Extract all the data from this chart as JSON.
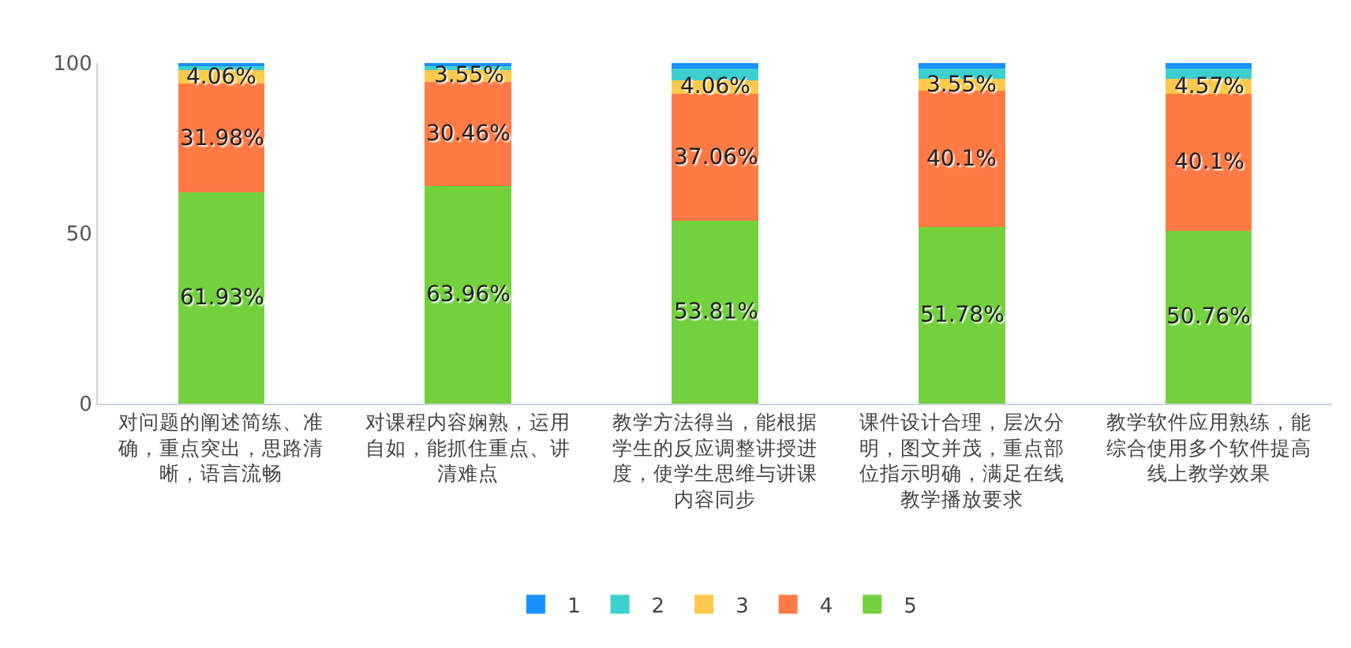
{
  "chart_data": {
    "type": "bar",
    "stacked": true,
    "categories": [
      "对问题的阐述简练、准确，重点突出，思路清晰，语言流畅",
      "对课程内容娴熟，运用自如，能抓住重点、讲清难点",
      "教学方法得当，能根据学生的反应调整讲授进度，使学生思维与讲课内容同步",
      "课件设计合理，层次分明，图文并茂，重点部位指示明确，满足在线教学播放要求",
      "教学软件应用熟练，能综合使用多个软件提高线上教学效果"
    ],
    "series": [
      {
        "name": "5",
        "color": "#73d13d",
        "values": [
          61.93,
          63.96,
          53.81,
          51.78,
          50.76
        ],
        "value_labels": [
          "61.93%",
          "63.96%",
          "53.81%",
          "51.78%",
          "50.76%"
        ]
      },
      {
        "name": "4",
        "color": "#ff7a45",
        "values": [
          31.98,
          30.46,
          37.06,
          40.1,
          40.1
        ],
        "value_labels": [
          "31.98%",
          "30.46%",
          "37.06%",
          "40.1%",
          "40.1%"
        ]
      },
      {
        "name": "3",
        "color": "#fcc94a",
        "values": [
          4.06,
          3.55,
          4.06,
          3.55,
          4.57
        ],
        "value_labels": [
          "4.06%",
          "3.55%",
          "4.06%",
          "3.55%",
          "4.57%"
        ]
      },
      {
        "name": "2",
        "color": "#3ccfcf",
        "values": [
          1,
          1,
          3.5,
          3,
          3
        ]
      },
      {
        "name": "1",
        "color": "#1890ff",
        "values": [
          1,
          1,
          1.5,
          1.5,
          1.5
        ]
      }
    ],
    "ylim": [
      0,
      100
    ],
    "yticks": [
      0,
      50,
      100
    ],
    "grid": false,
    "legend": "bottom"
  }
}
